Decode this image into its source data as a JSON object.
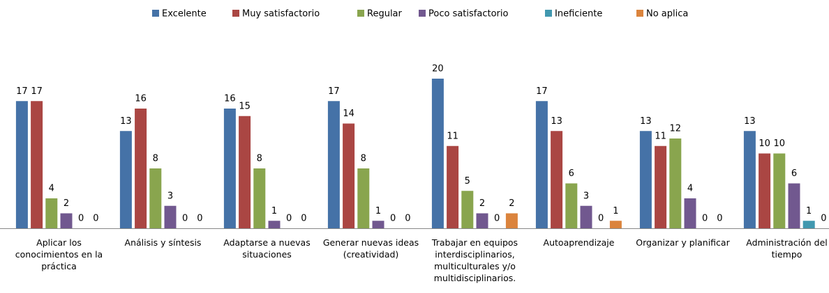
{
  "chart_data": {
    "type": "bar",
    "categories": [
      "Aplicar los conocimientos en la práctica",
      "Análisis y síntesis",
      "Adaptarse a nuevas situaciones",
      "Generar nuevas ideas (creatividad)",
      "Trabajar en equipos interdisciplinarios, multiculturales y/o multidisciplinarios.",
      "Autoaprendizaje",
      "Organizar y planificar",
      "Administración del tiempo"
    ],
    "series": [
      {
        "name": "Excelente",
        "color": "#4572a7",
        "values": [
          17,
          13,
          16,
          17,
          20,
          17,
          13,
          13
        ]
      },
      {
        "name": "Muy satisfactorio",
        "color": "#aa4643",
        "values": [
          17,
          16,
          15,
          14,
          11,
          13,
          11,
          10
        ]
      },
      {
        "name": "Regular",
        "color": "#89a54e",
        "values": [
          4,
          8,
          8,
          8,
          5,
          6,
          12,
          10
        ]
      },
      {
        "name": "Poco satisfactorio",
        "color": "#71588f",
        "values": [
          2,
          3,
          1,
          1,
          2,
          3,
          4,
          6
        ]
      },
      {
        "name": "Ineficiente",
        "color": "#4198af",
        "values": [
          0,
          0,
          0,
          0,
          0,
          0,
          0,
          1
        ]
      },
      {
        "name": "No aplica",
        "color": "#db843d",
        "values": [
          0,
          0,
          0,
          0,
          2,
          1,
          0,
          0
        ]
      }
    ],
    "ylim": [
      0,
      20
    ],
    "legend": "top"
  }
}
